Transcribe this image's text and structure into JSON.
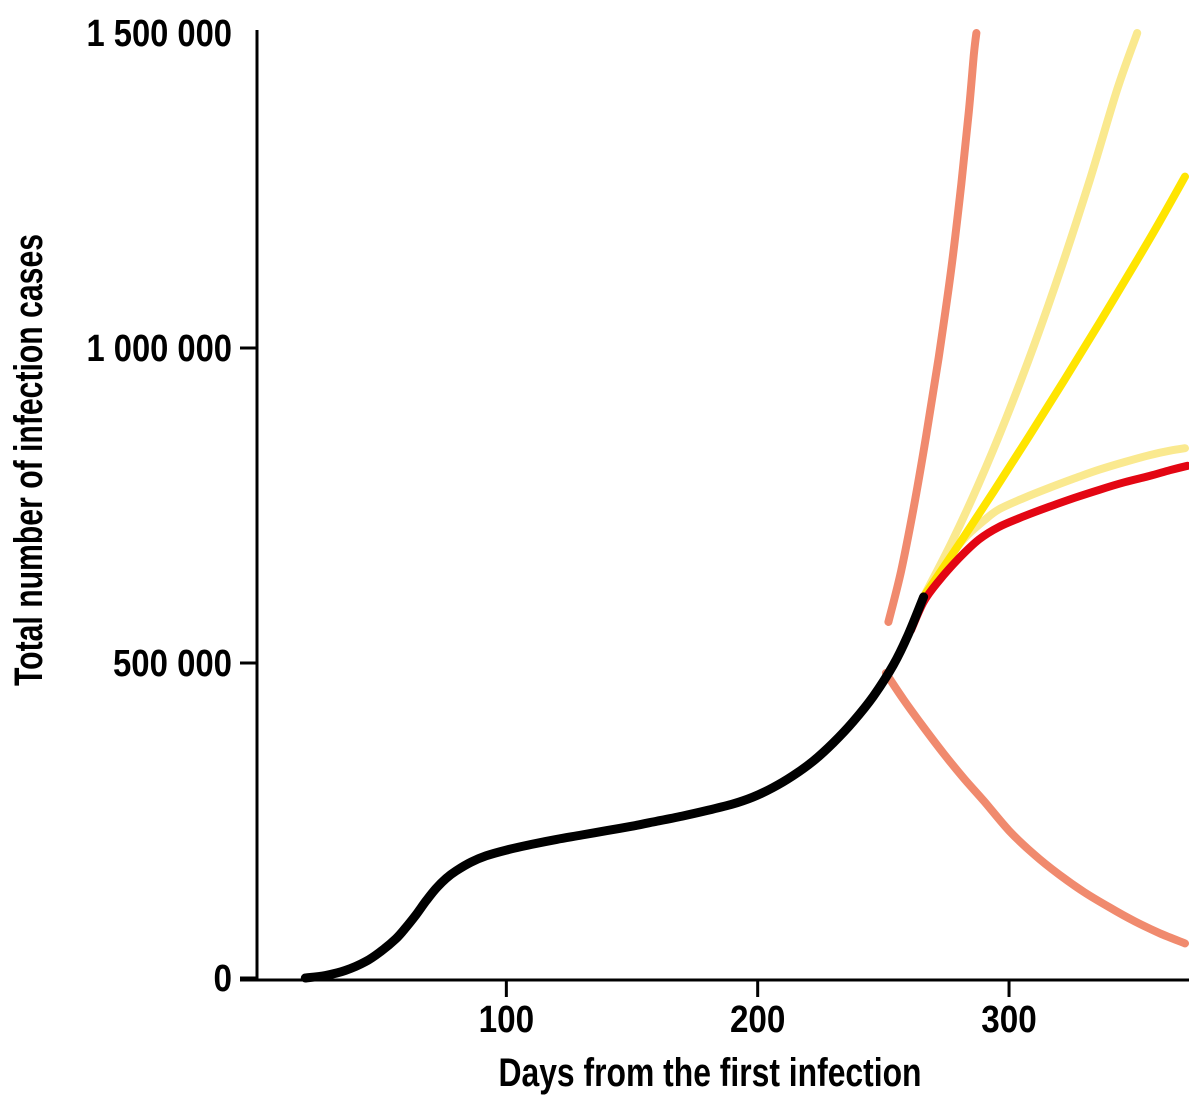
{
  "chart_data": {
    "type": "line",
    "title": "",
    "xlabel": "Days from the first infection",
    "ylabel": "Total number of infection cases",
    "xlim": [
      0,
      372
    ],
    "ylim": [
      0,
      1500000
    ],
    "grid": false,
    "legend": "none",
    "x_ticks": [
      {
        "value": 100,
        "label": "100"
      },
      {
        "value": 200,
        "label": "200"
      },
      {
        "value": 300,
        "label": "300"
      }
    ],
    "y_ticks": [
      {
        "value": 0,
        "label": "0",
        "tick": true
      },
      {
        "value": 500000,
        "label": "500 000",
        "tick": true
      },
      {
        "value": 1000000,
        "label": "1 000 000",
        "tick": true
      },
      {
        "value": 1500000,
        "label": "1 500 000",
        "tick": false
      }
    ],
    "colors": {
      "observed": "#000000",
      "confidence_band": "#F08A6E",
      "scenario_light": "#FAE98F",
      "scenario_mid": "#FFE500",
      "scenario_main": "#E30613",
      "axis": "#000000"
    },
    "series": [
      {
        "name": "upper-confidence-bound",
        "color_key": "confidence_band",
        "stroke_width": 8,
        "points": [
          [
            252,
            565000
          ],
          [
            257,
            645000
          ],
          [
            262,
            745000
          ],
          [
            267,
            860000
          ],
          [
            272,
            985000
          ],
          [
            277,
            1125000
          ],
          [
            281,
            1260000
          ],
          [
            284,
            1375000
          ],
          [
            286,
            1465000
          ],
          [
            287,
            1500000
          ]
        ]
      },
      {
        "name": "lower-confidence-bound",
        "color_key": "confidence_band",
        "stroke_width": 8,
        "points": [
          [
            251,
            484000
          ],
          [
            258,
            442000
          ],
          [
            266,
            398000
          ],
          [
            274,
            356000
          ],
          [
            282,
            317000
          ],
          [
            290,
            281000
          ],
          [
            300,
            234000
          ],
          [
            310,
            196000
          ],
          [
            320,
            164000
          ],
          [
            330,
            136000
          ],
          [
            340,
            112000
          ],
          [
            350,
            90000
          ],
          [
            360,
            71000
          ],
          [
            370,
            55000
          ]
        ]
      },
      {
        "name": "scenario-high-light",
        "color_key": "scenario_light",
        "stroke_width": 8,
        "points": [
          [
            266,
            605000
          ],
          [
            277,
            690000
          ],
          [
            288,
            785000
          ],
          [
            299,
            890000
          ],
          [
            310,
            1005000
          ],
          [
            321,
            1130000
          ],
          [
            332,
            1265000
          ],
          [
            343,
            1410000
          ],
          [
            351,
            1500000
          ]
        ]
      },
      {
        "name": "scenario-low-light",
        "color_key": "scenario_light",
        "stroke_width": 8,
        "points": [
          [
            266,
            605000
          ],
          [
            274,
            655000
          ],
          [
            282,
            697000
          ],
          [
            290,
            726000
          ],
          [
            296,
            744000
          ],
          [
            306,
            762000
          ],
          [
            316,
            778000
          ],
          [
            326,
            793000
          ],
          [
            336,
            807000
          ],
          [
            346,
            819000
          ],
          [
            356,
            830000
          ],
          [
            364,
            837000
          ],
          [
            370,
            841000
          ]
        ]
      },
      {
        "name": "scenario-middle",
        "color_key": "scenario_mid",
        "stroke_width": 8,
        "points": [
          [
            266,
            605000
          ],
          [
            280,
            688000
          ],
          [
            294,
            773000
          ],
          [
            308,
            860000
          ],
          [
            322,
            949000
          ],
          [
            336,
            1040000
          ],
          [
            350,
            1133000
          ],
          [
            360,
            1201000
          ],
          [
            370,
            1272000
          ]
        ]
      },
      {
        "name": "scenario-main",
        "color_key": "scenario_main",
        "stroke_width": 8,
        "points": [
          [
            261,
            552000
          ],
          [
            266,
            597000
          ],
          [
            272,
            630000
          ],
          [
            280,
            666000
          ],
          [
            288,
            696000
          ],
          [
            296,
            716000
          ],
          [
            306,
            733000
          ],
          [
            316,
            748000
          ],
          [
            326,
            762000
          ],
          [
            336,
            775000
          ],
          [
            346,
            787000
          ],
          [
            356,
            797000
          ],
          [
            364,
            806000
          ],
          [
            371,
            813000
          ]
        ]
      },
      {
        "name": "observed-cases",
        "color_key": "observed",
        "stroke_width": 9,
        "points": [
          [
            20,
            0
          ],
          [
            28,
            4000
          ],
          [
            36,
            12000
          ],
          [
            44,
            26000
          ],
          [
            50,
            42000
          ],
          [
            56,
            62000
          ],
          [
            60,
            80000
          ],
          [
            64,
            100000
          ],
          [
            68,
            122000
          ],
          [
            72,
            142000
          ],
          [
            76,
            158000
          ],
          [
            80,
            170000
          ],
          [
            86,
            184000
          ],
          [
            92,
            194000
          ],
          [
            100,
            203000
          ],
          [
            110,
            212000
          ],
          [
            120,
            220000
          ],
          [
            130,
            227000
          ],
          [
            140,
            234000
          ],
          [
            150,
            241000
          ],
          [
            160,
            249000
          ],
          [
            170,
            257000
          ],
          [
            180,
            266000
          ],
          [
            190,
            276000
          ],
          [
            198,
            287000
          ],
          [
            206,
            302000
          ],
          [
            214,
            321000
          ],
          [
            222,
            344000
          ],
          [
            230,
            373000
          ],
          [
            238,
            407000
          ],
          [
            246,
            447000
          ],
          [
            254,
            497000
          ],
          [
            260,
            546000
          ],
          [
            266,
            605000
          ]
        ]
      }
    ]
  }
}
